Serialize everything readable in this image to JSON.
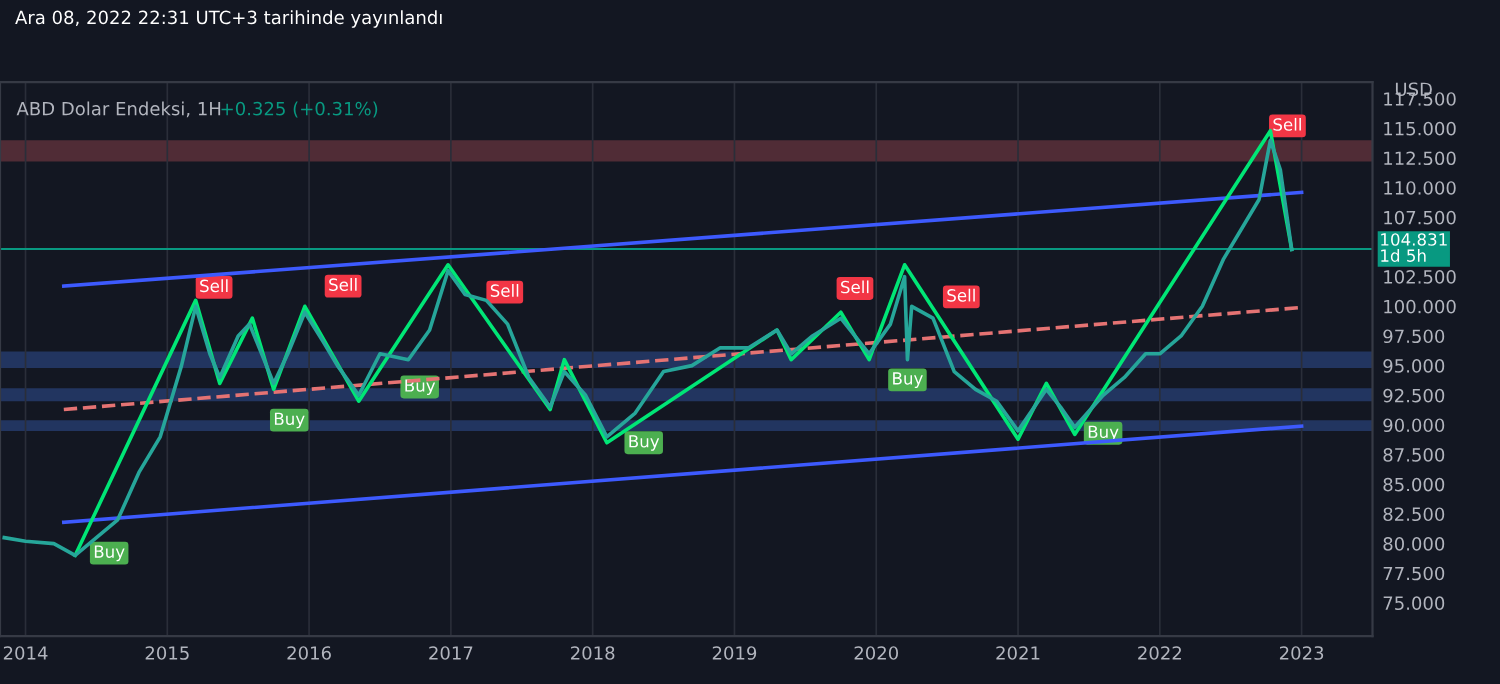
{
  "chart_data": {
    "type": "line",
    "title": "ABD Dolar Endeksi, 1H",
    "subtitle": "+0.325 (+0.31%)",
    "ylabel": "USD",
    "xlim": [
      2013.82,
      2023.5
    ],
    "xticks": [
      2014,
      2015,
      2016,
      2017,
      2018,
      2019,
      2020,
      2021,
      2022,
      2023
    ],
    "ylim": [
      72.2,
      118.9
    ],
    "yticks": [
      {
        "value": 75,
        "label": "75.000"
      },
      {
        "value": 77.5,
        "label": "77.500"
      },
      {
        "value": 80,
        "label": "80.000"
      },
      {
        "value": 82.5,
        "label": "82.500"
      },
      {
        "value": 85,
        "label": "85.000"
      },
      {
        "value": 87.5,
        "label": "87.500"
      },
      {
        "value": 90,
        "label": "90.000"
      },
      {
        "value": 92.5,
        "label": "92.500"
      },
      {
        "value": 95,
        "label": "95.000"
      },
      {
        "value": 97.5,
        "label": "97.500"
      },
      {
        "value": 100,
        "label": "100.000"
      },
      {
        "value": 102.5,
        "label": "102.500"
      },
      {
        "value": 105,
        "label": null
      },
      {
        "value": 107.5,
        "label": "107.500"
      },
      {
        "value": 110,
        "label": "110.000"
      },
      {
        "value": 112.5,
        "label": "112.500"
      },
      {
        "value": 115,
        "label": "115.000"
      },
      {
        "value": 117.5,
        "label": "117.500"
      }
    ],
    "grid": "x",
    "series": [
      {
        "color": "#3d5afe",
        "x": [
          2014.27,
          2023.0
        ],
        "values": [
          101.7,
          109.6
        ]
      },
      {
        "color": "#e57373",
        "line_style": "dashed",
        "x": [
          2014.27,
          2023.0
        ],
        "values": [
          91.3,
          99.9
        ]
      },
      {
        "color": "#3d5afe",
        "x": [
          2014.27,
          2023.0
        ],
        "values": [
          81.8,
          89.9
        ]
      },
      {
        "color": "#00e676",
        "x": [
          2014.35,
          2015.2,
          2015.37,
          2015.6,
          2015.75,
          2015.97,
          2016.35,
          2016.98,
          2017.7,
          2017.8,
          2018.1,
          2019.3,
          2019.4,
          2019.75,
          2019.95,
          2020.2,
          2021.0,
          2021.2,
          2021.4,
          2022.78,
          2022.93
        ],
        "values": [
          79,
          100.5,
          93.5,
          99,
          93,
          100,
          92,
          103.5,
          91.3,
          95.5,
          88.5,
          98,
          95.5,
          99.5,
          95.5,
          103.5,
          88.8,
          93.5,
          89.2,
          114.8,
          104.8
        ]
      },
      {
        "color": "#26a69a",
        "x": [
          2013.85,
          2014.0,
          2014.2,
          2014.35,
          2014.5,
          2014.65,
          2014.8,
          2014.95,
          2015.1,
          2015.2,
          2015.3,
          2015.37,
          2015.5,
          2015.58,
          2015.75,
          2015.85,
          2015.97,
          2016.1,
          2016.2,
          2016.35,
          2016.5,
          2016.7,
          2016.85,
          2016.98,
          2017.1,
          2017.25,
          2017.4,
          2017.55,
          2017.7,
          2017.8,
          2017.95,
          2018.1,
          2018.3,
          2018.5,
          2018.7,
          2018.9,
          2019.1,
          2019.3,
          2019.4,
          2019.55,
          2019.75,
          2019.95,
          2020.1,
          2020.2,
          2020.22,
          2020.25,
          2020.4,
          2020.55,
          2020.7,
          2020.85,
          2021.0,
          2021.2,
          2021.3,
          2021.4,
          2021.6,
          2021.75,
          2021.9,
          2022.0,
          2022.15,
          2022.3,
          2022.45,
          2022.6,
          2022.7,
          2022.78,
          2022.85,
          2022.93
        ],
        "values": [
          80.5,
          80.2,
          80.0,
          79.0,
          80.5,
          82,
          86,
          89,
          95,
          100.0,
          96,
          94,
          97.5,
          98.5,
          93.5,
          96,
          99.5,
          97,
          95,
          92.5,
          96,
          95.5,
          98,
          103,
          101,
          100.5,
          98.5,
          94,
          91.5,
          94.5,
          92.5,
          89,
          91,
          94.5,
          95,
          96.5,
          96.5,
          98,
          96,
          97.5,
          99,
          96,
          98.5,
          102.5,
          95.5,
          100,
          99,
          94.5,
          93,
          92,
          89.5,
          93,
          91.5,
          89.8,
          92.5,
          94,
          96,
          96,
          97.5,
          100,
          104,
          107,
          109,
          114,
          111.5,
          104.8
        ]
      }
    ],
    "bands": [
      {
        "axis": "y",
        "from": 112.2,
        "to": 114.0,
        "color": "#7a3b45"
      },
      {
        "axis": "y",
        "from": 94.8,
        "to": 96.2,
        "color": "#2d4a8a"
      },
      {
        "axis": "y",
        "from": 92.0,
        "to": 93.1,
        "color": "#2d4a8a"
      },
      {
        "axis": "y",
        "from": 89.5,
        "to": 90.4,
        "color": "#2d4a8a"
      }
    ],
    "ref_lines": [
      {
        "axis": "y",
        "value": 104.831,
        "label": "104.831\n1d 5h",
        "color": "#089981"
      }
    ],
    "annotations": [
      "Ara 08, 2022 22:31 UTC+3 tarihinde yayınlandı",
      {
        "text": "Sell",
        "x": 2015.33,
        "y": 101.6
      },
      {
        "text": "Sell",
        "x": 2016.24,
        "y": 101.7
      },
      {
        "text": "Sell",
        "x": 2017.38,
        "y": 101.2
      },
      {
        "text": "Sell",
        "x": 2019.85,
        "y": 101.5
      },
      {
        "text": "Sell",
        "x": 2020.6,
        "y": 100.8
      },
      {
        "text": "Sell",
        "x": 2022.9,
        "y": 115.2
      },
      {
        "text": "Buy",
        "x": 2014.59,
        "y": 79.2
      },
      {
        "text": "Buy",
        "x": 2015.86,
        "y": 90.4
      },
      {
        "text": "Buy",
        "x": 2016.78,
        "y": 93.2
      },
      {
        "text": "Buy",
        "x": 2018.36,
        "y": 88.5
      },
      {
        "text": "Buy",
        "x": 2020.22,
        "y": 93.8
      },
      {
        "text": "Buy",
        "x": 2021.6,
        "y": 89.3
      }
    ]
  }
}
